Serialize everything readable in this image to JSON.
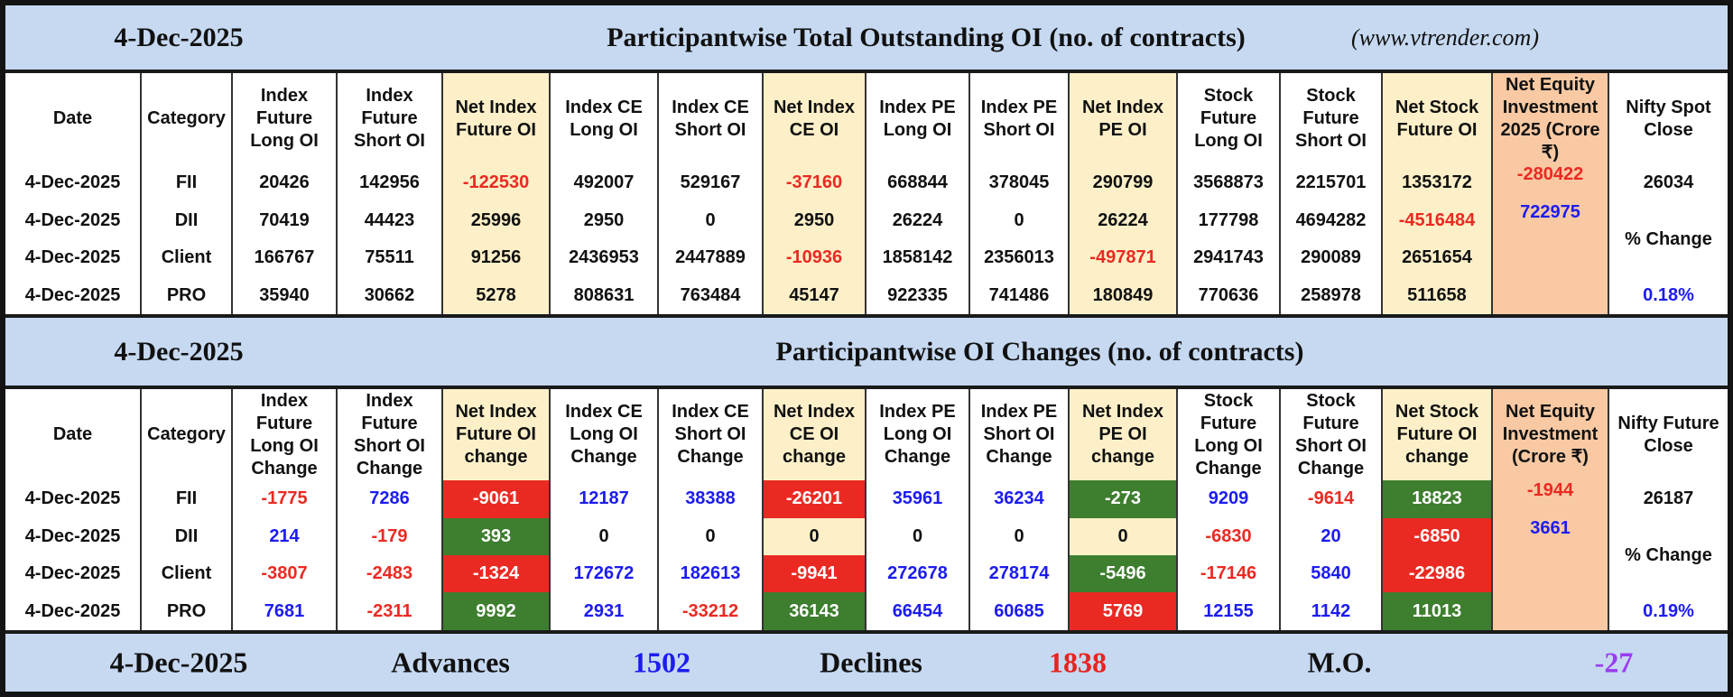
{
  "section1": {
    "date": "4-Dec-2025",
    "title": "Participantwise Total Outstanding OI (no. of contracts)",
    "source": "(www.vtrender.com)",
    "headers": [
      "Date",
      "Category",
      "Index Future Long OI",
      "Index Future Short OI",
      "Net Index Future OI",
      "Index CE Long OI",
      "Index CE Short OI",
      "Net Index CE OI",
      "Index PE Long OI",
      "Index PE Short OI",
      "Net Index PE OI",
      "Stock Future Long OI",
      "Stock Future Short OI",
      "Net Stock Future OI",
      "Net Equity Investment 2025 (Crore ₹)",
      "Nifty Spot Close"
    ],
    "rows": [
      [
        "4-Dec-2025",
        "FII",
        20426,
        142956,
        -122530,
        492007,
        529167,
        -37160,
        668844,
        378045,
        290799,
        3568873,
        2215701,
        1353172
      ],
      [
        "4-Dec-2025",
        "DII",
        70419,
        44423,
        25996,
        2950,
        0,
        2950,
        26224,
        0,
        26224,
        177798,
        4694282,
        -4516484
      ],
      [
        "4-Dec-2025",
        "Client",
        166767,
        75511,
        91256,
        2436953,
        2447889,
        -10936,
        1858142,
        2356013,
        -497871,
        2941743,
        290089,
        2651654
      ],
      [
        "4-Dec-2025",
        "PRO",
        35940,
        30662,
        5278,
        808631,
        763484,
        45147,
        922335,
        741486,
        180849,
        770636,
        258978,
        511658
      ]
    ],
    "net_equity": [
      -280422,
      722975
    ],
    "nifty": {
      "value": 26034,
      "change_label": "% Change",
      "change": "0.18%"
    }
  },
  "section2": {
    "date": "4-Dec-2025",
    "title": "Participantwise OI Changes (no. of contracts)",
    "headers": [
      "Date",
      "Category",
      "Index Future Long OI Change",
      "Index Future Short OI Change",
      "Net Index Future OI change",
      "Index CE Long OI Change",
      "Index CE Short OI Change",
      "Net Index CE OI change",
      "Index PE Long OI Change",
      "Index PE Short OI Change",
      "Net Index PE OI change",
      "Stock Future Long OI Change",
      "Stock Future Short OI Change",
      "Net Stock Future OI change",
      "Net Equity Investment (Crore ₹)",
      "Nifty Future Close"
    ],
    "rows": [
      [
        "4-Dec-2025",
        "FII",
        -1775,
        7286,
        -9061,
        12187,
        38388,
        -26201,
        35961,
        36234,
        -273,
        9209,
        -9614,
        18823
      ],
      [
        "4-Dec-2025",
        "DII",
        214,
        -179,
        393,
        0,
        0,
        0,
        0,
        0,
        0,
        -6830,
        20,
        -6850
      ],
      [
        "4-Dec-2025",
        "Client",
        -3807,
        -2483,
        -1324,
        172672,
        182613,
        -9941,
        272678,
        278174,
        -5496,
        -17146,
        5840,
        -22986
      ],
      [
        "4-Dec-2025",
        "PRO",
        7681,
        -2311,
        9992,
        2931,
        -33212,
        36143,
        66454,
        60685,
        5769,
        12155,
        1142,
        11013
      ]
    ],
    "net_equity": [
      -1944,
      3661
    ],
    "nifty": {
      "value": 26187,
      "change_label": "% Change",
      "change": "0.19%"
    }
  },
  "footer": {
    "date": "4-Dec-2025",
    "advances_label": "Advances",
    "advances": 1502,
    "declines_label": "Declines",
    "declines": 1838,
    "mo_label": "M.O.",
    "mo": -27
  }
}
